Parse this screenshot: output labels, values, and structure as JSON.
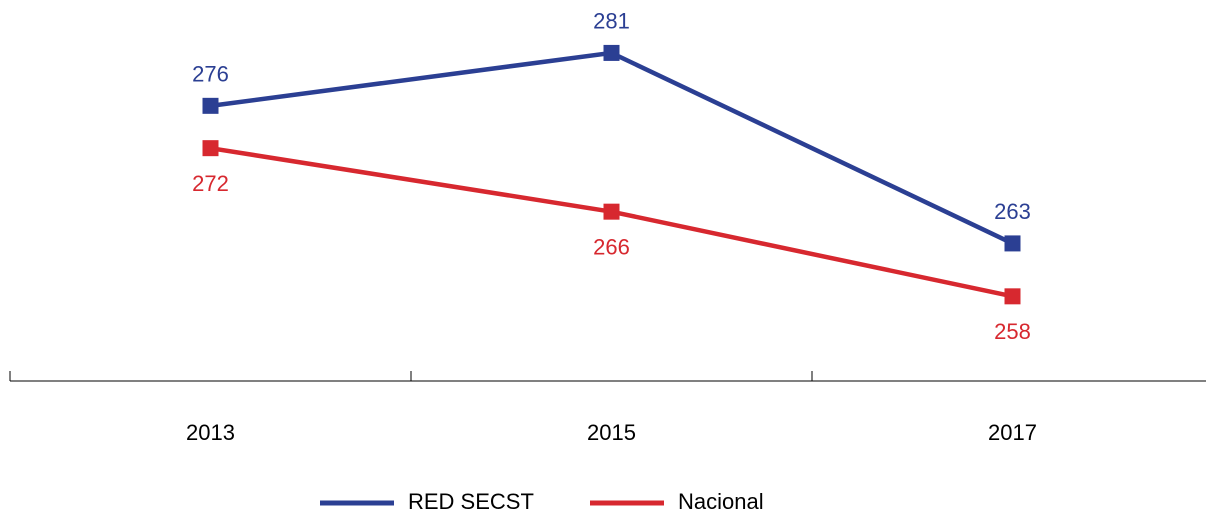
{
  "chart_data": {
    "type": "line",
    "categories": [
      "2013",
      "2015",
      "2017"
    ],
    "series": [
      {
        "name": "RED SECST",
        "color": "#2b3f93",
        "values": [
          276,
          281,
          263
        ]
      },
      {
        "name": "Nacional",
        "color": "#d7282f",
        "values": [
          272,
          266,
          258
        ]
      }
    ],
    "ylim": [
      250,
      286
    ],
    "legend": "bottom"
  }
}
